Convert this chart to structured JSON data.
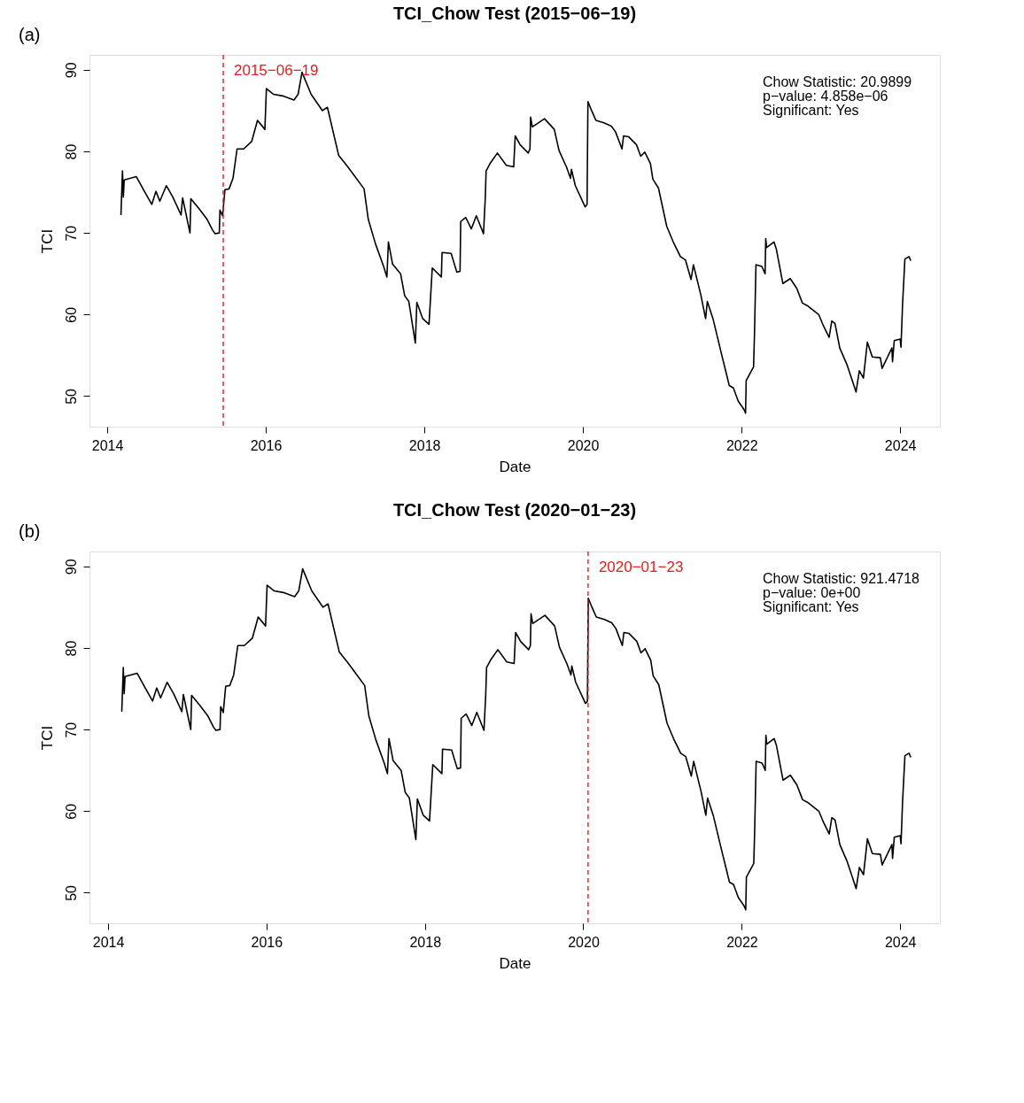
{
  "chart_data": [
    {
      "type": "line",
      "title": "TCI_Chow Test (2015−06−19)",
      "xlabel": "Date",
      "ylabel": "TCI",
      "x": [
        "2014-03-05",
        "2014-03-12",
        "2014-03-16",
        "2014-03-20",
        "2014-05-15",
        "2014-06-21",
        "2014-07-25",
        "2014-08-13",
        "2014-08-31",
        "2014-09-30",
        "2014-10-30",
        "2014-12-07",
        "2014-12-14",
        "2015-01-17",
        "2015-01-21",
        "2015-02-27",
        "2015-04-05",
        "2015-05-02",
        "2015-05-13",
        "2015-06-01",
        "2015-06-04",
        "2015-06-16",
        "2015-06-27",
        "2015-07-16",
        "2015-08-03",
        "2015-08-22",
        "2015-09-21",
        "2015-10-28",
        "2015-11-24",
        "2015-12-28",
        "2016-01-04",
        "2016-02-06",
        "2016-03-19",
        "2016-05-10",
        "2016-05-29",
        "2016-06-16",
        "2016-07-28",
        "2016-09-18",
        "2016-10-11",
        "2016-12-02",
        "2017-01-13",
        "2017-03-29",
        "2017-04-17",
        "2017-05-20",
        "2017-06-27",
        "2017-07-12",
        "2017-07-19",
        "2017-08-07",
        "2017-09-13",
        "2017-10-02",
        "2017-10-21",
        "2017-11-20",
        "2017-11-27",
        "2017-12-24",
        "2018-01-22",
        "2018-02-06",
        "2018-03-20",
        "2018-03-23",
        "2018-05-04",
        "2018-05-30",
        "2018-06-14",
        "2018-06-17",
        "2018-07-10",
        "2018-08-05",
        "2018-08-28",
        "2018-09-30",
        "2018-10-08",
        "2018-10-12",
        "2018-10-30",
        "2018-12-03",
        "2019-01-13",
        "2019-02-16",
        "2019-02-23",
        "2019-03-18",
        "2019-04-24",
        "2019-05-02",
        "2019-05-05",
        "2019-05-13",
        "2019-07-08",
        "2019-08-22",
        "2019-09-13",
        "2019-10-17",
        "2019-11-05",
        "2019-11-09",
        "2019-11-27",
        "2020-01-11",
        "2020-01-20",
        "2020-01-24",
        "2020-02-10",
        "2020-03-01",
        "2020-04-07",
        "2020-05-11",
        "2020-05-30",
        "2020-06-29",
        "2020-07-06",
        "2020-07-29",
        "2020-09-04",
        "2020-09-23",
        "2020-10-12",
        "2020-11-07",
        "2020-11-18",
        "2020-12-14",
        "2021-01-21",
        "2021-02-20",
        "2021-03-25",
        "2021-04-17",
        "2021-05-13",
        "2021-05-24",
        "2021-06-27",
        "2021-07-19",
        "2021-07-27",
        "2021-08-22",
        "2021-09-28",
        "2021-11-05",
        "2021-11-24",
        "2021-12-16",
        "2022-01-11",
        "2022-01-19",
        "2022-01-22",
        "2022-02-25",
        "2022-03-01",
        "2022-03-08",
        "2022-04-04",
        "2022-04-19",
        "2022-04-22",
        "2022-04-26",
        "2022-05-30",
        "2022-06-10",
        "2022-07-10",
        "2022-08-13",
        "2022-09-12",
        "2022-10-08",
        "2022-10-30",
        "2022-12-22",
        "2023-01-13",
        "2023-02-08",
        "2023-02-20",
        "2023-03-07",
        "2023-03-29",
        "2023-05-02",
        "2023-06-12",
        "2023-06-27",
        "2023-07-16",
        "2023-08-03",
        "2023-08-26",
        "2023-10-02",
        "2023-10-10",
        "2023-11-24",
        "2023-11-27",
        "2023-12-05",
        "2024-01-01",
        "2024-01-05",
        "2024-01-12",
        "2024-01-23",
        "2024-02-11",
        "2024-02-19"
      ],
      "series": [
        {
          "color": "#000000",
          "values": [
            72.2,
            77.6,
            74.4,
            76.5,
            76.9,
            75.1,
            73.5,
            75.1,
            73.9,
            75.8,
            74.4,
            72.2,
            74.3,
            70.0,
            74.2,
            73.0,
            71.7,
            70.3,
            69.9,
            70.0,
            72.8,
            72.1,
            75.3,
            75.4,
            76.7,
            80.3,
            80.3,
            81.2,
            83.8,
            82.7,
            87.7,
            87.0,
            86.8,
            86.3,
            87.0,
            89.7,
            87.0,
            85.0,
            85.4,
            79.5,
            78.1,
            75.4,
            71.7,
            68.7,
            65.9,
            64.6,
            68.9,
            66.2,
            65.0,
            62.3,
            61.6,
            56.5,
            61.5,
            59.5,
            58.8,
            65.7,
            64.6,
            67.6,
            67.5,
            65.2,
            65.3,
            71.4,
            71.9,
            70.5,
            72.1,
            69.9,
            74.2,
            77.6,
            78.5,
            79.8,
            78.3,
            78.1,
            81.9,
            80.8,
            79.8,
            80.3,
            84.2,
            83.0,
            84.0,
            82.7,
            80.1,
            78.1,
            76.7,
            77.8,
            75.8,
            73.2,
            73.5,
            86.1,
            85.0,
            83.8,
            83.5,
            83.1,
            82.4,
            80.3,
            81.9,
            81.8,
            80.8,
            79.4,
            79.9,
            78.5,
            76.6,
            75.5,
            70.8,
            68.9,
            67.1,
            66.7,
            64.3,
            66.1,
            62.4,
            59.5,
            61.6,
            59.5,
            55.4,
            51.3,
            51.0,
            49.4,
            48.4,
            47.9,
            51.9,
            53.6,
            57.4,
            66.1,
            65.9,
            65.0,
            69.3,
            68.2,
            68.9,
            68.0,
            63.8,
            64.4,
            63.2,
            61.4,
            61.1,
            60.0,
            58.6,
            57.2,
            59.2,
            58.9,
            55.9,
            53.8,
            50.5,
            53.1,
            52.2,
            56.6,
            54.8,
            54.7,
            53.4,
            55.9,
            54.2,
            56.8,
            57.0,
            56.0,
            61.1,
            66.8,
            67.1,
            66.6
          ]
        }
      ],
      "xlim": [
        "2013-10-11",
        "2024-07-02"
      ],
      "ylim": [
        46.25,
        91.83
      ],
      "xticks": [
        {
          "value": "2014-01-01",
          "label": "2014"
        },
        {
          "value": "2016-01-01",
          "label": "2016"
        },
        {
          "value": "2018-01-01",
          "label": "2018"
        },
        {
          "value": "2020-01-01",
          "label": "2020"
        },
        {
          "value": "2022-01-01",
          "label": "2022"
        },
        {
          "value": "2024-01-01",
          "label": "2024"
        }
      ],
      "yticks": [
        50,
        60,
        70,
        80,
        90
      ],
      "ref_lines": [
        {
          "axis": "x",
          "value": "2015-06-19",
          "label": "2015−06−19",
          "color": "#e41a1c",
          "line_style": "dashed"
        }
      ],
      "annotations": [
        "(a)",
        "Chow Statistic: 20.9899",
        "p−value: 4.858e−06",
        "Significant: Yes"
      ],
      "grid": false
    },
    {
      "type": "line",
      "title": "TCI_Chow Test (2020−01−23)",
      "xlabel": "Date",
      "ylabel": "TCI",
      "x": [
        "2014-03-05",
        "2014-03-12",
        "2014-03-16",
        "2014-03-20",
        "2014-05-15",
        "2014-06-21",
        "2014-07-25",
        "2014-08-13",
        "2014-08-31",
        "2014-09-30",
        "2014-10-30",
        "2014-12-07",
        "2014-12-14",
        "2015-01-17",
        "2015-01-21",
        "2015-02-27",
        "2015-04-05",
        "2015-05-02",
        "2015-05-13",
        "2015-06-01",
        "2015-06-04",
        "2015-06-16",
        "2015-06-27",
        "2015-07-16",
        "2015-08-03",
        "2015-08-22",
        "2015-09-21",
        "2015-10-28",
        "2015-11-24",
        "2015-12-28",
        "2016-01-04",
        "2016-02-06",
        "2016-03-19",
        "2016-05-10",
        "2016-05-29",
        "2016-06-16",
        "2016-07-28",
        "2016-09-18",
        "2016-10-11",
        "2016-12-02",
        "2017-01-13",
        "2017-03-29",
        "2017-04-17",
        "2017-05-20",
        "2017-06-27",
        "2017-07-12",
        "2017-07-19",
        "2017-08-07",
        "2017-09-13",
        "2017-10-02",
        "2017-10-21",
        "2017-11-20",
        "2017-11-27",
        "2017-12-24",
        "2018-01-22",
        "2018-02-06",
        "2018-03-20",
        "2018-03-23",
        "2018-05-04",
        "2018-05-30",
        "2018-06-14",
        "2018-06-17",
        "2018-07-10",
        "2018-08-05",
        "2018-08-28",
        "2018-09-30",
        "2018-10-08",
        "2018-10-12",
        "2018-10-30",
        "2018-12-03",
        "2019-01-13",
        "2019-02-16",
        "2019-02-23",
        "2019-03-18",
        "2019-04-24",
        "2019-05-02",
        "2019-05-05",
        "2019-05-13",
        "2019-07-08",
        "2019-08-22",
        "2019-09-13",
        "2019-10-17",
        "2019-11-05",
        "2019-11-09",
        "2019-11-27",
        "2020-01-11",
        "2020-01-20",
        "2020-01-24",
        "2020-02-10",
        "2020-03-01",
        "2020-04-07",
        "2020-05-11",
        "2020-05-30",
        "2020-06-29",
        "2020-07-06",
        "2020-07-29",
        "2020-09-04",
        "2020-09-23",
        "2020-10-12",
        "2020-11-07",
        "2020-11-18",
        "2020-12-14",
        "2021-01-21",
        "2021-02-20",
        "2021-03-25",
        "2021-04-17",
        "2021-05-13",
        "2021-05-24",
        "2021-06-27",
        "2021-07-19",
        "2021-07-27",
        "2021-08-22",
        "2021-09-28",
        "2021-11-05",
        "2021-11-24",
        "2021-12-16",
        "2022-01-11",
        "2022-01-19",
        "2022-01-22",
        "2022-02-25",
        "2022-03-01",
        "2022-03-08",
        "2022-04-04",
        "2022-04-19",
        "2022-04-22",
        "2022-04-26",
        "2022-05-30",
        "2022-06-10",
        "2022-07-10",
        "2022-08-13",
        "2022-09-12",
        "2022-10-08",
        "2022-10-30",
        "2022-12-22",
        "2023-01-13",
        "2023-02-08",
        "2023-02-20",
        "2023-03-07",
        "2023-03-29",
        "2023-05-02",
        "2023-06-12",
        "2023-06-27",
        "2023-07-16",
        "2023-08-03",
        "2023-08-26",
        "2023-10-02",
        "2023-10-10",
        "2023-11-24",
        "2023-11-27",
        "2023-12-05",
        "2024-01-01",
        "2024-01-05",
        "2024-01-12",
        "2024-01-23",
        "2024-02-11",
        "2024-02-19"
      ],
      "series": [
        {
          "color": "#000000",
          "values": [
            72.2,
            77.6,
            74.4,
            76.5,
            76.9,
            75.1,
            73.5,
            75.1,
            73.9,
            75.8,
            74.4,
            72.2,
            74.3,
            70.0,
            74.2,
            73.0,
            71.7,
            70.3,
            69.9,
            70.0,
            72.8,
            72.1,
            75.3,
            75.4,
            76.7,
            80.3,
            80.3,
            81.2,
            83.8,
            82.7,
            87.7,
            87.0,
            86.8,
            86.3,
            87.0,
            89.7,
            87.0,
            85.0,
            85.4,
            79.5,
            78.1,
            75.4,
            71.7,
            68.7,
            65.9,
            64.6,
            68.9,
            66.2,
            65.0,
            62.3,
            61.6,
            56.5,
            61.5,
            59.5,
            58.8,
            65.7,
            64.6,
            67.6,
            67.5,
            65.2,
            65.3,
            71.4,
            71.9,
            70.5,
            72.1,
            69.9,
            74.2,
            77.6,
            78.5,
            79.8,
            78.3,
            78.1,
            81.9,
            80.8,
            79.8,
            80.3,
            84.2,
            83.0,
            84.0,
            82.7,
            80.1,
            78.1,
            76.7,
            77.8,
            75.8,
            73.2,
            73.5,
            86.1,
            85.0,
            83.8,
            83.5,
            83.1,
            82.4,
            80.3,
            81.9,
            81.8,
            80.8,
            79.4,
            79.9,
            78.5,
            76.6,
            75.5,
            70.8,
            68.9,
            67.1,
            66.7,
            64.3,
            66.1,
            62.4,
            59.5,
            61.6,
            59.5,
            55.4,
            51.3,
            51.0,
            49.4,
            48.4,
            47.9,
            51.9,
            53.6,
            57.4,
            66.1,
            65.9,
            65.0,
            69.3,
            68.2,
            68.9,
            68.0,
            63.8,
            64.4,
            63.2,
            61.4,
            61.1,
            60.0,
            58.6,
            57.2,
            59.2,
            58.9,
            55.9,
            53.8,
            50.5,
            53.1,
            52.2,
            56.6,
            54.8,
            54.7,
            53.4,
            55.9,
            54.2,
            56.8,
            57.0,
            56.0,
            61.1,
            66.8,
            67.1,
            66.6
          ]
        }
      ],
      "xlim": [
        "2013-10-07",
        "2024-07-02"
      ],
      "ylim": [
        46.25,
        91.83
      ],
      "xticks": [
        {
          "value": "2014-01-01",
          "label": "2014"
        },
        {
          "value": "2016-01-01",
          "label": "2016"
        },
        {
          "value": "2018-01-01",
          "label": "2018"
        },
        {
          "value": "2020-01-01",
          "label": "2020"
        },
        {
          "value": "2022-01-01",
          "label": "2022"
        },
        {
          "value": "2024-01-01",
          "label": "2024"
        }
      ],
      "yticks": [
        50,
        60,
        70,
        80,
        90
      ],
      "ref_lines": [
        {
          "axis": "x",
          "value": "2020-01-23",
          "label": "2020−01−23",
          "color": "#e41a1c",
          "line_style": "dashed"
        }
      ],
      "annotations": [
        "(b)",
        "Chow Statistic: 921.4718",
        "p−value: 0e+00",
        "Significant: Yes"
      ],
      "grid": false
    }
  ]
}
